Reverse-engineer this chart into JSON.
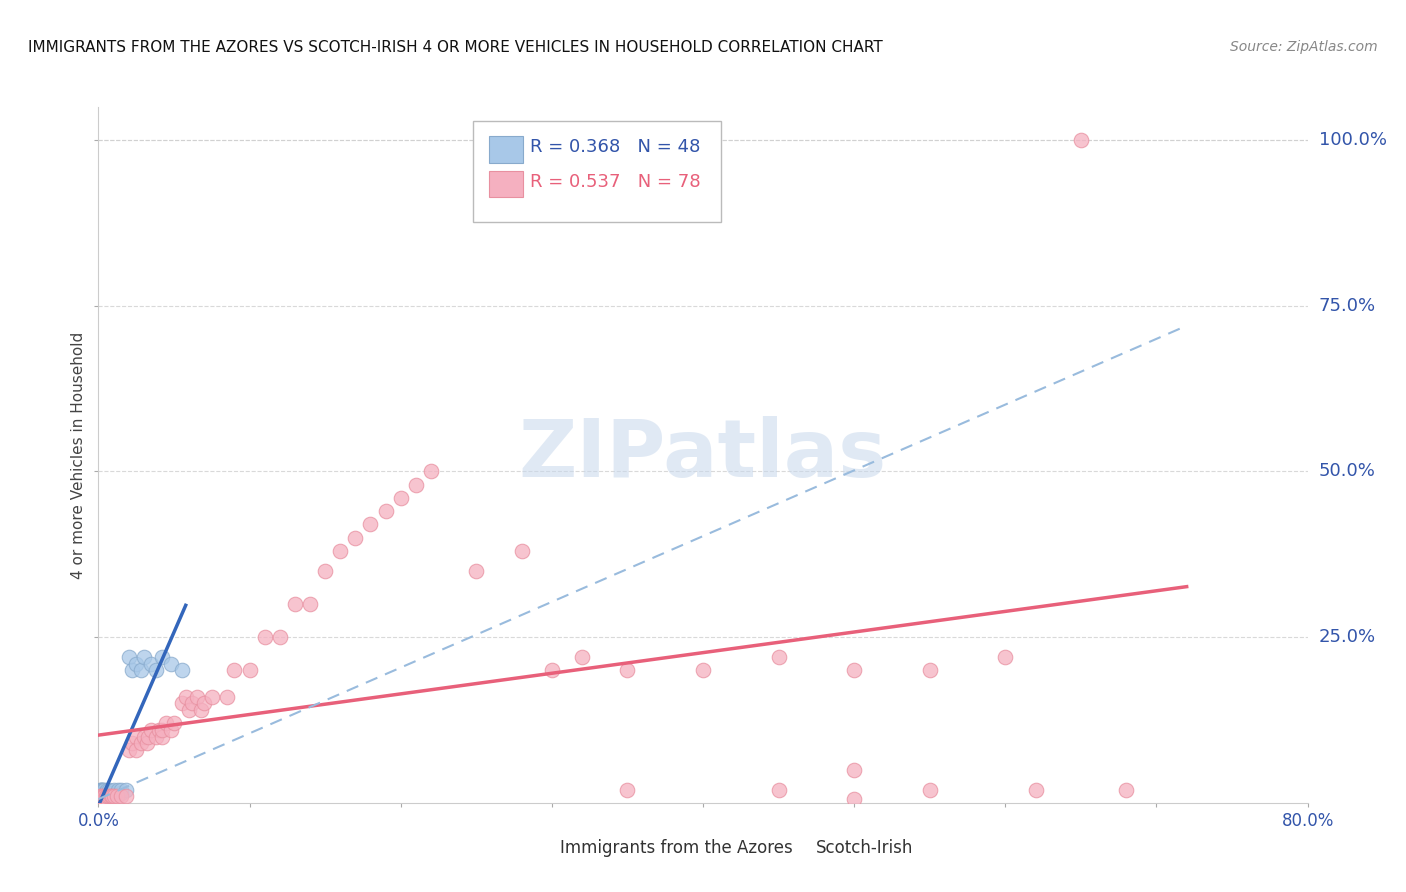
{
  "title": "IMMIGRANTS FROM THE AZORES VS SCOTCH-IRISH 4 OR MORE VEHICLES IN HOUSEHOLD CORRELATION CHART",
  "source": "Source: ZipAtlas.com",
  "ylabel": "4 or more Vehicles in Household",
  "xlim": [
    0.0,
    0.8
  ],
  "ylim": [
    0.0,
    1.05
  ],
  "ytick_right_labels": [
    "25.0%",
    "50.0%",
    "75.0%",
    "100.0%"
  ],
  "ytick_right_positions": [
    0.25,
    0.5,
    0.75,
    1.0
  ],
  "grid_color": "#d0d0d0",
  "background_color": "#ffffff",
  "azores_color": "#a8c8e8",
  "azores_edge_color": "#88aacc",
  "scotch_irish_color": "#f5b0c0",
  "scotch_irish_edge_color": "#e890a0",
  "azores_line_color": "#3366bb",
  "scotch_irish_line_color": "#e8607a",
  "dashed_line_color": "#99bbdd",
  "azores_R": 0.368,
  "azores_N": 48,
  "scotch_irish_R": 0.537,
  "scotch_irish_N": 78,
  "watermark": "ZIPatlas",
  "legend_R1": "R = 0.368",
  "legend_N1": "N = 48",
  "legend_R2": "R = 0.537",
  "legend_N2": "N = 78",
  "azores_x": [
    0.0008,
    0.001,
    0.001,
    0.0012,
    0.0013,
    0.0015,
    0.0015,
    0.0018,
    0.002,
    0.002,
    0.002,
    0.0022,
    0.0025,
    0.0025,
    0.003,
    0.003,
    0.003,
    0.0032,
    0.0035,
    0.004,
    0.004,
    0.004,
    0.0042,
    0.0045,
    0.005,
    0.005,
    0.006,
    0.006,
    0.007,
    0.007,
    0.008,
    0.009,
    0.01,
    0.012,
    0.013,
    0.015,
    0.015,
    0.018,
    0.02,
    0.022,
    0.025,
    0.028,
    0.03,
    0.035,
    0.038,
    0.042,
    0.048,
    0.055
  ],
  "azores_y": [
    0.005,
    0.01,
    0.02,
    0.015,
    0.005,
    0.01,
    0.02,
    0.015,
    0.005,
    0.01,
    0.02,
    0.015,
    0.01,
    0.02,
    0.005,
    0.01,
    0.02,
    0.015,
    0.01,
    0.005,
    0.01,
    0.02,
    0.015,
    0.01,
    0.005,
    0.015,
    0.01,
    0.02,
    0.015,
    0.02,
    0.01,
    0.015,
    0.02,
    0.015,
    0.02,
    0.015,
    0.02,
    0.02,
    0.22,
    0.2,
    0.21,
    0.2,
    0.22,
    0.21,
    0.2,
    0.22,
    0.21,
    0.2
  ],
  "scotch_x": [
    0.0005,
    0.001,
    0.001,
    0.0015,
    0.002,
    0.002,
    0.003,
    0.003,
    0.004,
    0.004,
    0.005,
    0.005,
    0.006,
    0.006,
    0.007,
    0.008,
    0.009,
    0.01,
    0.012,
    0.015,
    0.018,
    0.02,
    0.022,
    0.025,
    0.025,
    0.028,
    0.03,
    0.032,
    0.033,
    0.035,
    0.038,
    0.04,
    0.042,
    0.042,
    0.045,
    0.048,
    0.05,
    0.055,
    0.058,
    0.06,
    0.062,
    0.065,
    0.068,
    0.07,
    0.075,
    0.085,
    0.09,
    0.1,
    0.11,
    0.12,
    0.13,
    0.14,
    0.15,
    0.16,
    0.17,
    0.18,
    0.19,
    0.2,
    0.21,
    0.22,
    0.25,
    0.28,
    0.3,
    0.32,
    0.35,
    0.4,
    0.45,
    0.5,
    0.55,
    0.6,
    0.65,
    0.5,
    0.35,
    0.45,
    0.55,
    0.62,
    0.68,
    0.5
  ],
  "scotch_y": [
    0.002,
    0.005,
    0.01,
    0.005,
    0.005,
    0.01,
    0.005,
    0.01,
    0.005,
    0.01,
    0.005,
    0.01,
    0.005,
    0.01,
    0.01,
    0.01,
    0.01,
    0.01,
    0.01,
    0.01,
    0.01,
    0.08,
    0.09,
    0.1,
    0.08,
    0.09,
    0.1,
    0.09,
    0.1,
    0.11,
    0.1,
    0.11,
    0.1,
    0.11,
    0.12,
    0.11,
    0.12,
    0.15,
    0.16,
    0.14,
    0.15,
    0.16,
    0.14,
    0.15,
    0.16,
    0.16,
    0.2,
    0.2,
    0.25,
    0.25,
    0.3,
    0.3,
    0.35,
    0.38,
    0.4,
    0.42,
    0.44,
    0.46,
    0.48,
    0.5,
    0.35,
    0.38,
    0.2,
    0.22,
    0.2,
    0.2,
    0.22,
    0.2,
    0.2,
    0.22,
    1.0,
    0.05,
    0.02,
    0.02,
    0.02,
    0.02,
    0.02,
    0.005
  ]
}
